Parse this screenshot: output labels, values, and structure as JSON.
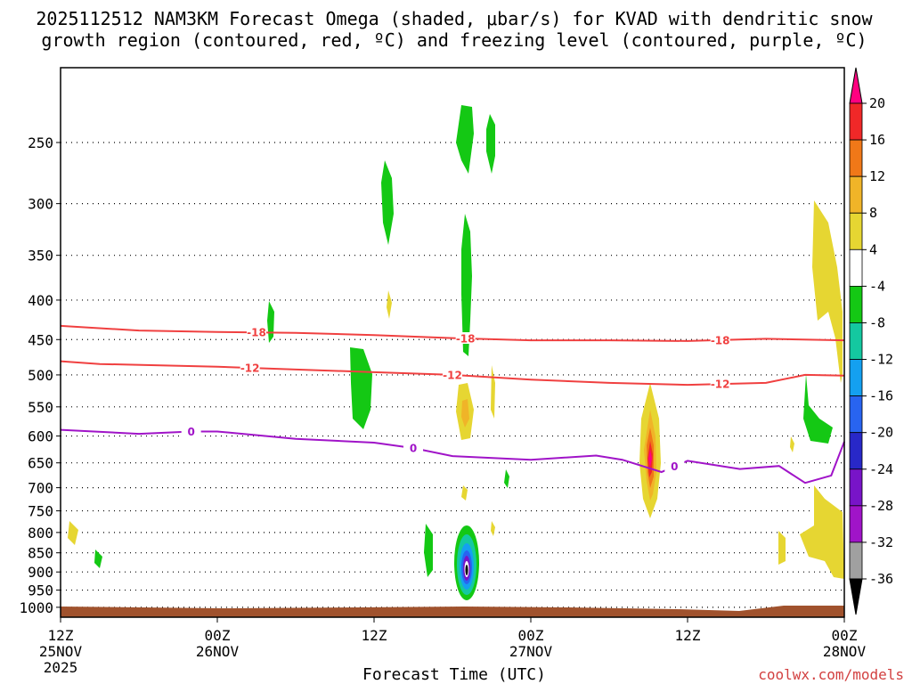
{
  "chart_data": {
    "type": "heatmap",
    "title_line1": "2025112512 NAM3KM Forecast Omega (shaded, μbar/s) for KVAD with dendritic snow",
    "title_line2": "growth region (contoured, red, ºC) and freezing level (contoured, purple, ºC)",
    "xlabel": "Forecast Time (UTC)",
    "credit": "coolwx.com/models",
    "xlim_hours": [
      0,
      60
    ],
    "ylim_hpa": [
      1030,
      200
    ],
    "y_ticks": [
      250,
      300,
      350,
      400,
      450,
      500,
      550,
      600,
      650,
      700,
      750,
      800,
      850,
      900,
      950,
      1000
    ],
    "x_ticks": [
      {
        "hour": 0,
        "line1": "12Z",
        "line2": "25NOV",
        "line3": "2025"
      },
      {
        "hour": 12,
        "line1": "00Z",
        "line2": "26NOV",
        "line3": ""
      },
      {
        "hour": 24,
        "line1": "12Z",
        "line2": "",
        "line3": ""
      },
      {
        "hour": 36,
        "line1": "00Z",
        "line2": "27NOV",
        "line3": ""
      },
      {
        "hour": 48,
        "line1": "12Z",
        "line2": "",
        "line3": ""
      },
      {
        "hour": 60,
        "line1": "00Z",
        "line2": "28NOV",
        "line3": ""
      }
    ],
    "colorbar": {
      "labels": [
        "20",
        "16",
        "12",
        "8",
        "4",
        "-4",
        "-8",
        "-12",
        "-16",
        "-20",
        "-24",
        "-28",
        "-32",
        "-36"
      ],
      "colors": [
        "#ff0080",
        "#f02828",
        "#f07818",
        "#f0b428",
        "#e6d632",
        "#ffffff",
        "#14c814",
        "#14c8a0",
        "#14a0f0",
        "#2864f0",
        "#2828c8",
        "#7814c8",
        "#a014c8",
        "#a0a0a0",
        "#000000"
      ]
    },
    "contours": [
      {
        "name": "-18",
        "color": "#f04040",
        "points": [
          [
            0,
            432
          ],
          [
            6,
            438
          ],
          [
            12,
            440
          ],
          [
            18,
            441
          ],
          [
            24,
            444
          ],
          [
            30,
            448
          ],
          [
            36,
            451
          ],
          [
            42,
            451
          ],
          [
            48,
            452
          ],
          [
            54,
            449
          ],
          [
            60,
            451
          ]
        ],
        "labels": [
          [
            15,
            "-18"
          ],
          [
            31,
            "-18"
          ],
          [
            50.5,
            "-18"
          ]
        ]
      },
      {
        "name": "-12",
        "color": "#f04040",
        "points": [
          [
            0,
            480
          ],
          [
            3,
            484
          ],
          [
            12,
            488
          ],
          [
            24,
            496
          ],
          [
            30,
            500
          ],
          [
            36,
            507
          ],
          [
            42,
            512
          ],
          [
            48,
            515
          ],
          [
            54,
            512
          ],
          [
            57,
            500
          ],
          [
            60,
            501
          ]
        ],
        "labels": [
          [
            14.5,
            "-12"
          ],
          [
            30,
            "-12"
          ],
          [
            50.5,
            "-12"
          ]
        ]
      },
      {
        "name": "0",
        "color": "#a014c8",
        "points": [
          [
            0,
            589
          ],
          [
            6,
            596
          ],
          [
            10,
            592
          ],
          [
            12,
            592
          ],
          [
            18,
            605
          ],
          [
            24,
            612
          ],
          [
            27,
            622
          ],
          [
            30,
            637
          ],
          [
            36,
            644
          ],
          [
            41,
            636
          ],
          [
            43,
            644
          ],
          [
            46,
            668
          ],
          [
            48,
            646
          ],
          [
            52,
            662
          ],
          [
            55,
            656
          ],
          [
            57,
            690
          ],
          [
            59,
            675
          ],
          [
            60,
            610
          ]
        ],
        "labels": [
          [
            10,
            "0"
          ],
          [
            27,
            "0"
          ],
          [
            47,
            "0"
          ]
        ]
      }
    ],
    "omega_features": [
      {
        "hour": 31,
        "hpa": 905,
        "value": -36
      },
      {
        "hour": 45.5,
        "hpa": 650,
        "value": 20
      },
      {
        "hour": 31,
        "hpa": 260,
        "value": -8
      },
      {
        "hour": 25.5,
        "hpa": 320,
        "value": -8
      },
      {
        "hour": 23.5,
        "hpa": 550,
        "value": -8
      },
      {
        "hour": 58.5,
        "hpa": 375,
        "value": 4
      },
      {
        "hour": 58.5,
        "hpa": 850,
        "value": 4
      }
    ]
  }
}
